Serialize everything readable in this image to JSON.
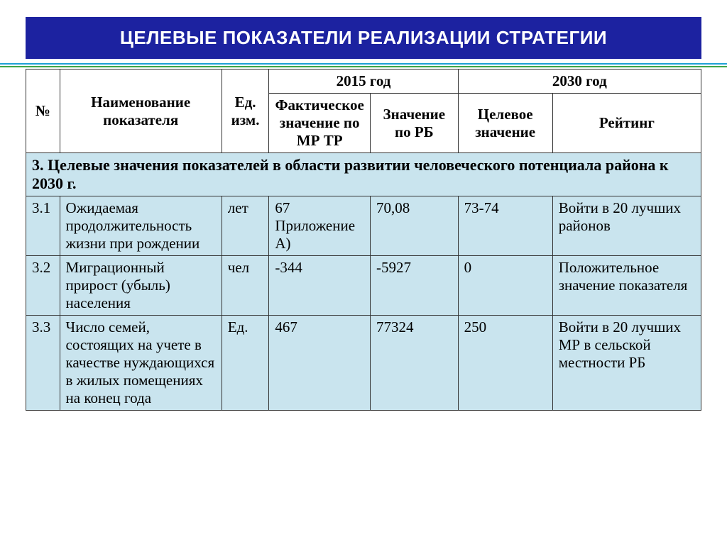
{
  "title": "ЦЕЛЕВЫЕ ПОКАЗАТЕЛИ РЕАЛИЗАЦИИ СТРАТЕГИИ",
  "colors": {
    "title_bg": "#1c22a0",
    "title_fg": "#ffffff",
    "cell_bg": "#c9e4ee",
    "rule_blue": "#1ea1d6",
    "rule_green": "#3fa648"
  },
  "header": {
    "num": "№",
    "name": "Наименование показателя",
    "unit": "Ед. изм.",
    "year2015": "2015 год",
    "year2030": "2030 год",
    "fact": "Фактическое значение по МР ТР",
    "rb": "Значение по РБ",
    "target": "Целевое значение",
    "rank": "Рейтинг"
  },
  "section": "3. Целевые значения показателей в области развитии человеческого потенциала района к 2030 г.",
  "rows": [
    {
      "num": "3.1",
      "name": "Ожидаемая продолжительность жизни при рождении",
      "unit": "лет",
      "fact": "67 Приложение А)",
      "rb": "70,08",
      "target": "73-74",
      "rank": "Войти в 20 лучших районов"
    },
    {
      "num": "3.2",
      "name": "Миграционный прирост (убыль) населения",
      "unit": "чел",
      "fact": "-344",
      "rb": "-5927",
      "target": "0",
      "rank": "Положительное значение показателя"
    },
    {
      "num": "3.3",
      "name": "Число семей, состоящих на учете в качестве нуждающихся в жилых помещениях на конец года",
      "unit": "Ед.",
      "fact": "467",
      "rb": "77324",
      "target": "250",
      "rank": "Войти в 20 лучших МР в сельской местности РБ"
    }
  ]
}
